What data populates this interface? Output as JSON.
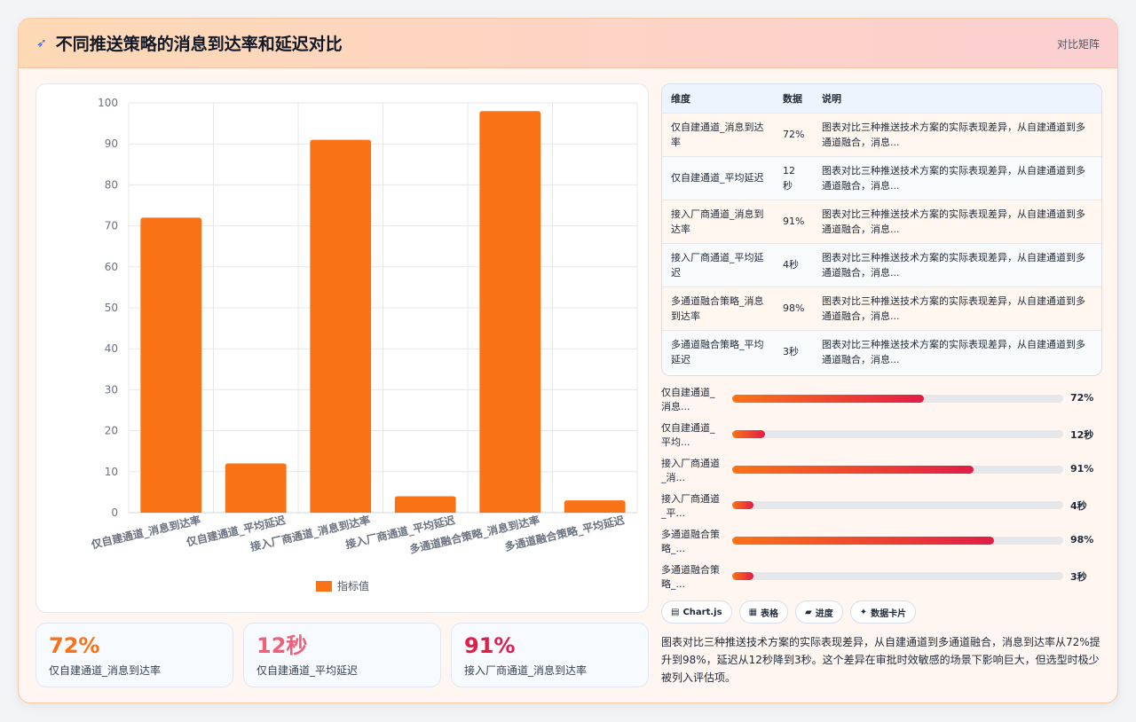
{
  "header": {
    "icon": "comet-icon",
    "title": "不同推送策略的消息到达率和延迟对比",
    "tag": "对比矩阵"
  },
  "chart_data": {
    "type": "bar",
    "categories": [
      "仅自建通道_消息到达率",
      "仅自建通道_平均延迟",
      "接入厂商通道_消息到达率",
      "接入厂商通道_平均延迟",
      "多通道融合策略_消息到达率",
      "多通道融合策略_平均延迟"
    ],
    "series": [
      {
        "name": "指标值",
        "values": [
          72,
          12,
          91,
          4,
          98,
          3
        ],
        "color": "#f97316"
      }
    ],
    "ylim": [
      0,
      100
    ],
    "yticks": [
      0,
      10,
      20,
      30,
      40,
      50,
      60,
      70,
      80,
      90,
      100
    ],
    "grid": true,
    "legend": "bottom"
  },
  "stats": [
    {
      "value": "72%",
      "label": "仅自建通道_消息到达率",
      "color": "#f97316"
    },
    {
      "value": "12秒",
      "label": "仅自建通道_平均延迟",
      "color": "#f0607a"
    },
    {
      "value": "91%",
      "label": "接入厂商通道_消息到达率",
      "color": "#e11d48"
    }
  ],
  "table": {
    "headers": [
      "维度",
      "数据",
      "说明"
    ],
    "rows": [
      {
        "dim": "仅自建通道_消息到达率",
        "val": "72%",
        "desc": "图表对比三种推送技术方案的实际表现差异，从自建通道到多通道融合，消息..."
      },
      {
        "dim": "仅自建通道_平均延迟",
        "val": "12秒",
        "desc": "图表对比三种推送技术方案的实际表现差异，从自建通道到多通道融合，消息..."
      },
      {
        "dim": "接入厂商通道_消息到达率",
        "val": "91%",
        "desc": "图表对比三种推送技术方案的实际表现差异，从自建通道到多通道融合，消息..."
      },
      {
        "dim": "接入厂商通道_平均延迟",
        "val": "4秒",
        "desc": "图表对比三种推送技术方案的实际表现差异，从自建通道到多通道融合，消息..."
      },
      {
        "dim": "多通道融合策略_消息到达率",
        "val": "98%",
        "desc": "图表对比三种推送技术方案的实际表现差异，从自建通道到多通道融合，消息..."
      },
      {
        "dim": "多通道融合策略_平均延迟",
        "val": "3秒",
        "desc": "图表对比三种推送技术方案的实际表现差异，从自建通道到多通道融合，消息..."
      }
    ]
  },
  "progress": [
    {
      "label": "仅自建通道_消息...",
      "value": "72%",
      "fraction": 0.58
    },
    {
      "label": "仅自建通道_平均...",
      "value": "12秒",
      "fraction": 0.1
    },
    {
      "label": "接入厂商通道_消...",
      "value": "91%",
      "fraction": 0.73
    },
    {
      "label": "接入厂商通道_平...",
      "value": "4秒",
      "fraction": 0.065
    },
    {
      "label": "多通道融合策略_...",
      "value": "98%",
      "fraction": 0.79
    },
    {
      "label": "多通道融合策略_...",
      "value": "3秒",
      "fraction": 0.065
    }
  ],
  "chips": [
    {
      "icon": "chart-icon",
      "glyph": "▤",
      "label": "Chart.js"
    },
    {
      "icon": "table-icon",
      "glyph": "▦",
      "label": "表格"
    },
    {
      "icon": "progress-icon",
      "glyph": "▰",
      "label": "进度"
    },
    {
      "icon": "sparkle-icon",
      "glyph": "✦",
      "label": "数据卡片"
    }
  ],
  "summary": "图表对比三种推送技术方案的实际表现差异，从自建通道到多通道融合，消息到达率从72%提升到98%，延迟从12秒降到3秒。这个差异在审批时效敏感的场景下影响巨大，但选型时极少被列入评估项。"
}
